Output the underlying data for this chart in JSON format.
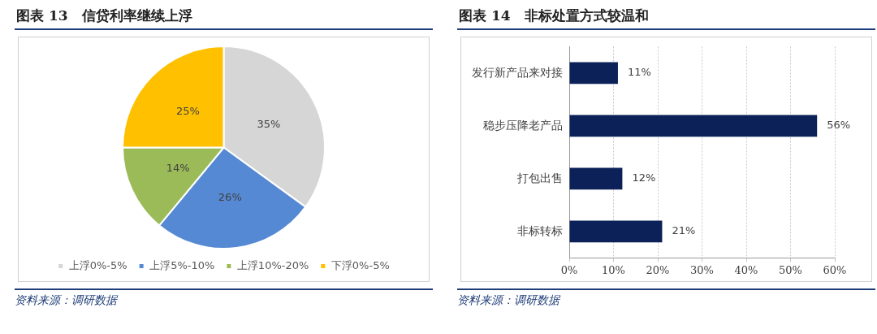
{
  "chart_data": [
    {
      "type": "pie",
      "title": "图表 13　信贷利率继续上浮",
      "categories": [
        "上浮0%-5%",
        "上浮5%-10%",
        "上浮10%-20%",
        "下浮0%-5%"
      ],
      "values": [
        35,
        26,
        14,
        25
      ],
      "colors": [
        "#d6d6d6",
        "#5689d3",
        "#9bbb59",
        "#ffc000"
      ],
      "value_labels": [
        "35%",
        "26%",
        "14%",
        "25%"
      ],
      "legend": "bottom",
      "annotations": [
        "资料来源：调研数据"
      ]
    },
    {
      "type": "bar",
      "orientation": "horizontal",
      "title": "图表 14　非标处置方式较温和",
      "categories": [
        "发行新产品来对接",
        "稳步压降老产品",
        "打包出售",
        "非标转标"
      ],
      "values": [
        11,
        56,
        12,
        21
      ],
      "color": "#0c2157",
      "value_labels": [
        "11%",
        "56%",
        "12%",
        "21%"
      ],
      "xlim": [
        0,
        60
      ],
      "xticks": [
        {
          "value": 0,
          "label": "0%"
        },
        {
          "value": 10,
          "label": "10%"
        },
        {
          "value": 20,
          "label": "20%"
        },
        {
          "value": 30,
          "label": "30%"
        },
        {
          "value": 40,
          "label": "40%"
        },
        {
          "value": 50,
          "label": "50%"
        },
        {
          "value": 60,
          "label": "60%"
        }
      ],
      "grid": "x",
      "legend": false,
      "annotations": [
        "资料来源：调研数据"
      ]
    }
  ]
}
